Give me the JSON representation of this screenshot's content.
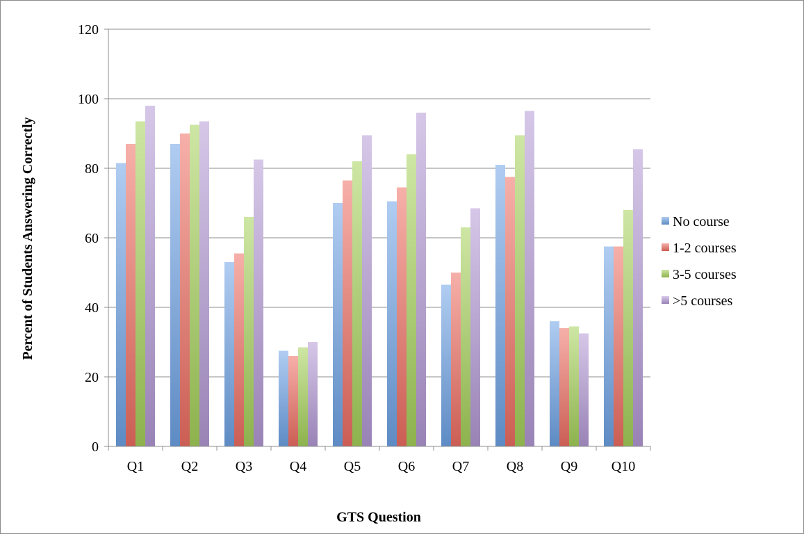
{
  "chart_data": {
    "type": "bar",
    "title": "",
    "xlabel": "GTS Question",
    "ylabel": "Percent of Students Answering Correctly",
    "ylim": [
      0,
      120
    ],
    "yticks": [
      0,
      20,
      40,
      60,
      80,
      100,
      120
    ],
    "categories": [
      "Q1",
      "Q2",
      "Q3",
      "Q4",
      "Q5",
      "Q6",
      "Q7",
      "Q8",
      "Q9",
      "Q10"
    ],
    "series": [
      {
        "name": "No course",
        "color": "#6fa3e6",
        "values": [
          81.5,
          87,
          53,
          27.5,
          70,
          70.5,
          46.5,
          81,
          36,
          57.5
        ]
      },
      {
        "name": "1-2 courses",
        "color": "#ef6f63",
        "values": [
          87,
          90,
          55.5,
          26,
          76.5,
          74.5,
          50,
          77.5,
          34,
          57.5
        ]
      },
      {
        "name": "3-5 courses",
        "color": "#a6d15a",
        "values": [
          93.5,
          92.5,
          66,
          28.5,
          82,
          84,
          63,
          89.5,
          34.5,
          68
        ]
      },
      {
        "name": ">5 courses",
        "color": "#b49ad6",
        "values": [
          98,
          93.5,
          82.5,
          30,
          89.5,
          96,
          68.5,
          96.5,
          32.5,
          85.5
        ]
      }
    ],
    "grid": true,
    "legend": "right"
  }
}
